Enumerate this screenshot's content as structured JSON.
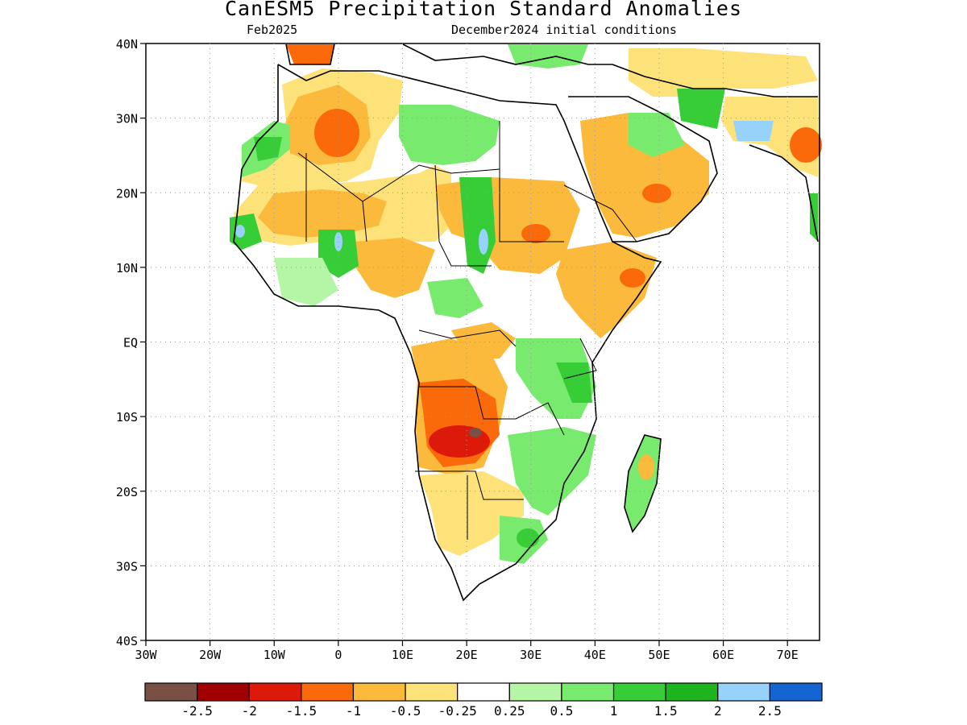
{
  "header": {
    "title": "CanESM5 Precipitation Standard Anomalies",
    "subtitle_left": "Feb2025",
    "subtitle_right": "December2024 initial conditions"
  },
  "map": {
    "lat_labels": [
      "40N",
      "30N",
      "20N",
      "10N",
      "EQ",
      "10S",
      "20S",
      "30S",
      "40S"
    ],
    "lon_labels": [
      "30W",
      "20W",
      "10W",
      "0",
      "10E",
      "20E",
      "30E",
      "40E",
      "50E",
      "60E",
      "70E"
    ],
    "lon_range": [
      -30,
      75
    ],
    "lat_range": [
      -40,
      40
    ],
    "grid": "dotted"
  },
  "colorbar": {
    "labels": [
      "-2.5",
      "-2",
      "-1.5",
      "-1",
      "-0.5",
      "-0.25",
      "0.25",
      "0.5",
      "1",
      "1.5",
      "2",
      "2.5"
    ],
    "colors": [
      "#7a5044",
      "#a00000",
      "#dd1a0a",
      "#fa6a0a",
      "#fbba3c",
      "#fde27a",
      "#ffffff",
      "#b4f5a6",
      "#78eb6e",
      "#37cd37",
      "#1eb41e",
      "#96d2fa",
      "#1464d2"
    ]
  }
}
